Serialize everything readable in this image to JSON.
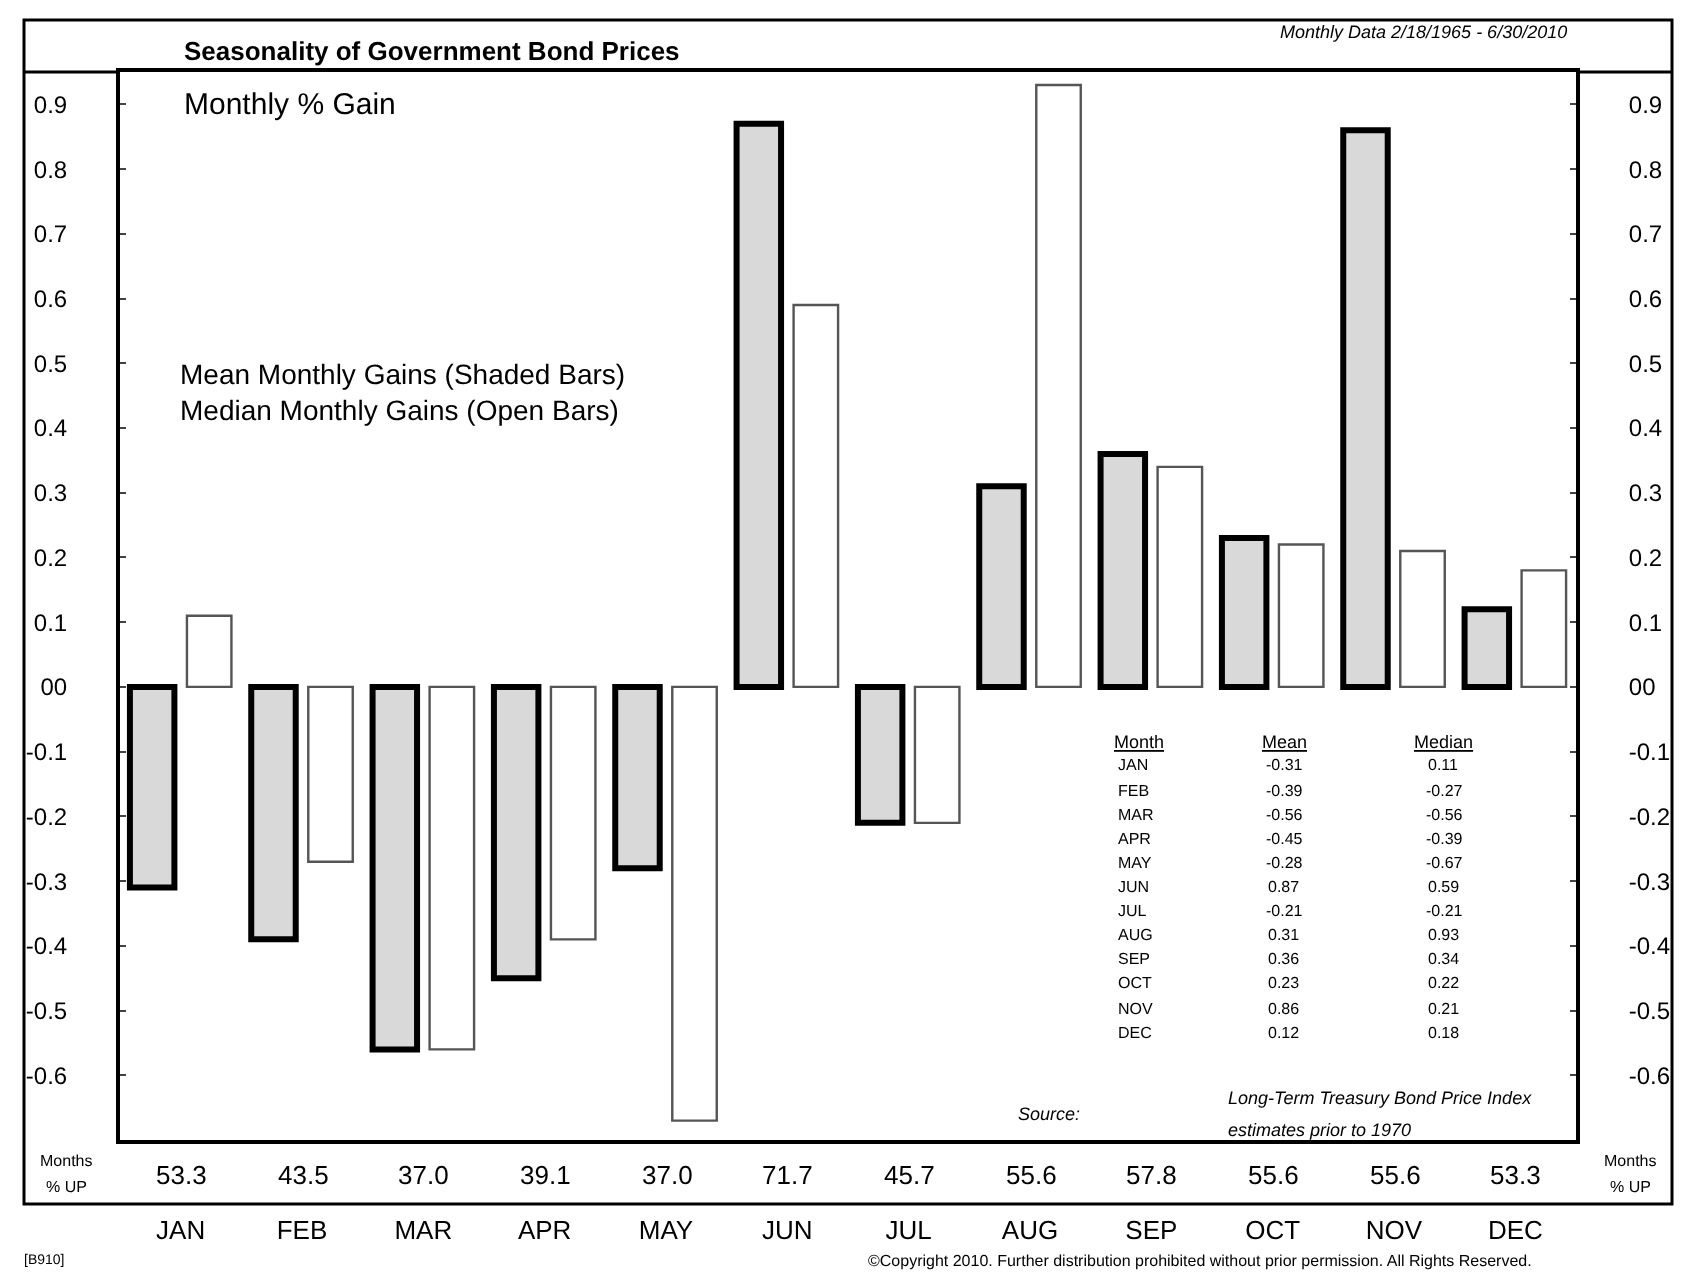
{
  "chart_data": {
    "type": "bar",
    "title": "Seasonality of Government Bond Prices",
    "subtitle": "Monthly Data 2/18/1965 - 6/30/2010",
    "categories": [
      "JAN",
      "FEB",
      "MAR",
      "APR",
      "MAY",
      "JUN",
      "JUL",
      "AUG",
      "SEP",
      "OCT",
      "NOV",
      "DEC"
    ],
    "series": [
      {
        "name": "Mean",
        "color": "#d9d9d9",
        "values": [
          -0.31,
          -0.39,
          -0.56,
          -0.45,
          -0.28,
          0.87,
          -0.21,
          0.31,
          0.36,
          0.23,
          0.86,
          0.12
        ]
      },
      {
        "name": "Median",
        "color": "#ffffff",
        "values": [
          0.11,
          -0.27,
          -0.56,
          -0.39,
          -0.67,
          0.59,
          -0.21,
          0.93,
          0.34,
          0.22,
          0.21,
          0.18
        ]
      }
    ],
    "ylim": [
      -0.7,
      0.95
    ],
    "yticks": [
      {
        "value": -0.6,
        "label": "-0.6"
      },
      {
        "value": -0.5,
        "label": "-0.5"
      },
      {
        "value": -0.4,
        "label": "-0.4"
      },
      {
        "value": -0.3,
        "label": "-0.3"
      },
      {
        "value": -0.2,
        "label": "-0.2"
      },
      {
        "value": -0.1,
        "label": "-0.1"
      },
      {
        "value": 0,
        "label": "00"
      },
      {
        "value": 0.1,
        "label": "0.1"
      },
      {
        "value": 0.2,
        "label": "0.2"
      },
      {
        "value": 0.3,
        "label": "0.3"
      },
      {
        "value": 0.4,
        "label": "0.4"
      },
      {
        "value": 0.5,
        "label": "0.5"
      },
      {
        "value": 0.6,
        "label": "0.6"
      },
      {
        "value": 0.7,
        "label": "0.7"
      },
      {
        "value": 0.8,
        "label": "0.8"
      },
      {
        "value": 0.9,
        "label": "0.9"
      }
    ],
    "y2lim": [
      -0.7,
      0.95
    ],
    "y2ticks": [
      {
        "value": -0.6,
        "label": "-0.6"
      },
      {
        "value": -0.5,
        "label": "-0.5"
      },
      {
        "value": -0.4,
        "label": "-0.4"
      },
      {
        "value": -0.3,
        "label": "-0.3"
      },
      {
        "value": -0.2,
        "label": "-0.2"
      },
      {
        "value": -0.1,
        "label": "-0.1"
      },
      {
        "value": 0,
        "label": "00"
      },
      {
        "value": 0.1,
        "label": "0.1"
      },
      {
        "value": 0.2,
        "label": "0.2"
      },
      {
        "value": 0.3,
        "label": "0.3"
      },
      {
        "value": 0.4,
        "label": "0.4"
      },
      {
        "value": 0.5,
        "label": "0.5"
      },
      {
        "value": 0.6,
        "label": "0.6"
      },
      {
        "value": 0.7,
        "label": "0.7"
      },
      {
        "value": 0.8,
        "label": "0.8"
      },
      {
        "value": 0.9,
        "label": "0.9"
      }
    ],
    "grid": false,
    "legend": false,
    "annotations": [
      "Monthly % Gain",
      "Mean Monthly Gains (Shaded Bars)",
      "Median Monthly Gains (Open Bars)",
      "Month",
      "Source:",
      "Long-Term Treasury Bond Price Index",
      "estimates prior to 1970",
      "Months",
      "% UP",
      "Months",
      "% UP",
      "[B910]",
      "©Copyright 2010. Further distribution prohibited without prior permission. All Rights Reserved.",
      "53.3",
      "43.5",
      "37.0",
      "39.1",
      "37.0",
      "71.7",
      "45.7",
      "55.6",
      "57.8",
      "55.6",
      "55.6",
      "53.3",
      "-0.31",
      "-0.39",
      "-0.56",
      "-0.45",
      "-0.28",
      "0.87",
      "-0.21",
      "0.31",
      "0.36",
      "0.23",
      "0.86",
      "0.12",
      "0.11",
      "-0.27",
      "-0.56",
      "-0.39",
      "-0.67",
      "0.59",
      "-0.21",
      "0.93",
      "0.34",
      "0.22",
      "0.21",
      "0.18"
    ]
  }
}
